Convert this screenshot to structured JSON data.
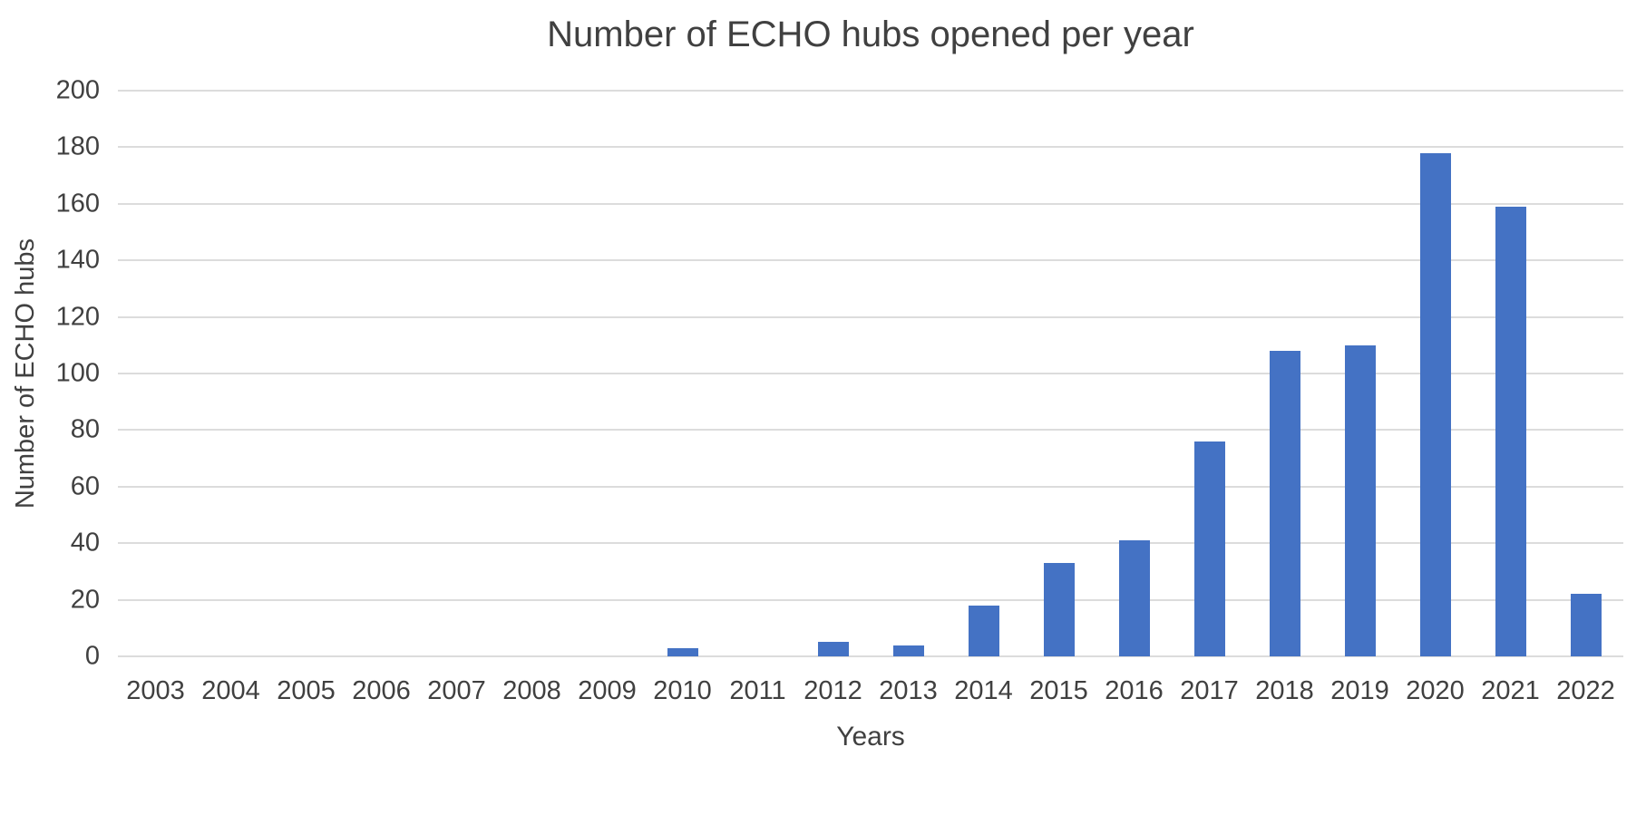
{
  "chart_data": {
    "type": "bar",
    "title": "Number of ECHO hubs opened per year",
    "xlabel": "Years",
    "ylabel": "Number of ECHO hubs",
    "categories": [
      "2003",
      "2004",
      "2005",
      "2006",
      "2007",
      "2008",
      "2009",
      "2010",
      "2011",
      "2012",
      "2013",
      "2014",
      "2015",
      "2016",
      "2017",
      "2018",
      "2019",
      "2020",
      "2021",
      "2022"
    ],
    "values": [
      0,
      0,
      0,
      0,
      0,
      0,
      0,
      3,
      0,
      5,
      4,
      18,
      33,
      41,
      76,
      108,
      110,
      178,
      159,
      22
    ],
    "ylim": [
      0,
      200
    ],
    "ytick_step": 20,
    "grid": true,
    "legend": "none",
    "bar_color": "#4472C4",
    "gridline_color": "#dcdcdc",
    "text_color": "#404040"
  }
}
